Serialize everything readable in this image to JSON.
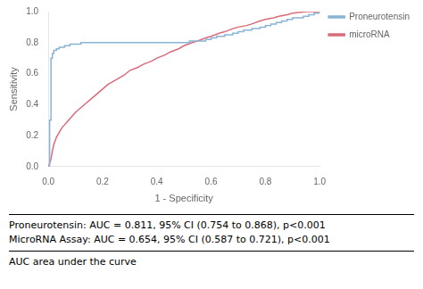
{
  "chart_data": {
    "type": "line",
    "xlabel": "1 - Specificity",
    "ylabel": "Sensitivity",
    "xlim": [
      0.0,
      1.0
    ],
    "ylim": [
      0.0,
      1.0
    ],
    "xticks": [
      {
        "value": 0.0,
        "label": "0.0"
      },
      0.2,
      0.4,
      0.6,
      0.8,
      {
        "value": 1.0,
        "label": "1.0"
      }
    ],
    "yticks": [
      {
        "value": 0.0,
        "label": "0.0"
      },
      0.2,
      0.4,
      0.6,
      0.8,
      {
        "value": 1.0,
        "label": "1.0"
      }
    ],
    "grid": false,
    "legend": "right",
    "annotations": [
      "Proneurotensin: AUC = 0.811, 95% CI (0.754 to 0.868), p<0.001",
      "MicroRNA Assay: AUC = 0.654, 95% CI (0.587 to 0.721), p<0.001",
      "AUC area under the curve"
    ],
    "series": [
      {
        "name": "Proneurotensin",
        "color": "#8ab4d4",
        "line_style": "steps",
        "x": [
          0.0,
          0.005,
          0.01,
          0.015,
          0.02,
          0.03,
          0.04,
          0.06,
          0.08,
          0.1,
          0.12,
          0.15,
          0.18,
          0.2,
          0.25,
          0.3,
          0.35,
          0.4,
          0.45,
          0.5,
          0.52,
          0.55,
          0.58,
          0.6,
          0.62,
          0.65,
          0.68,
          0.7,
          0.72,
          0.75,
          0.78,
          0.8,
          0.82,
          0.84,
          0.86,
          0.88,
          0.9,
          0.92,
          0.94,
          0.96,
          0.98,
          1.0
        ],
        "values": [
          0.0,
          0.3,
          0.7,
          0.73,
          0.75,
          0.76,
          0.77,
          0.78,
          0.79,
          0.79,
          0.8,
          0.8,
          0.8,
          0.8,
          0.8,
          0.8,
          0.8,
          0.8,
          0.8,
          0.8,
          0.81,
          0.81,
          0.82,
          0.83,
          0.84,
          0.85,
          0.86,
          0.87,
          0.88,
          0.89,
          0.9,
          0.91,
          0.92,
          0.93,
          0.94,
          0.95,
          0.96,
          0.96,
          0.97,
          0.98,
          0.99,
          1.0
        ]
      },
      {
        "name": "microRNA",
        "color": "#d96b7a",
        "line_style": "solid",
        "x": [
          0.0,
          0.005,
          0.01,
          0.015,
          0.02,
          0.03,
          0.04,
          0.05,
          0.06,
          0.07,
          0.08,
          0.09,
          0.1,
          0.12,
          0.14,
          0.16,
          0.18,
          0.2,
          0.22,
          0.25,
          0.28,
          0.3,
          0.33,
          0.35,
          0.38,
          0.4,
          0.43,
          0.45,
          0.48,
          0.5,
          0.53,
          0.55,
          0.58,
          0.6,
          0.63,
          0.65,
          0.68,
          0.7,
          0.73,
          0.75,
          0.78,
          0.8,
          0.83,
          0.85,
          0.88,
          0.9,
          0.93,
          0.95,
          0.97,
          1.0
        ],
        "values": [
          0.0,
          0.02,
          0.05,
          0.1,
          0.14,
          0.19,
          0.22,
          0.25,
          0.27,
          0.29,
          0.31,
          0.33,
          0.35,
          0.38,
          0.41,
          0.44,
          0.47,
          0.5,
          0.53,
          0.56,
          0.59,
          0.62,
          0.64,
          0.66,
          0.68,
          0.7,
          0.72,
          0.74,
          0.76,
          0.78,
          0.8,
          0.81,
          0.83,
          0.84,
          0.86,
          0.87,
          0.89,
          0.9,
          0.91,
          0.92,
          0.94,
          0.95,
          0.96,
          0.97,
          0.98,
          0.99,
          0.995,
          1.0,
          1.0,
          1.0
        ]
      }
    ]
  }
}
